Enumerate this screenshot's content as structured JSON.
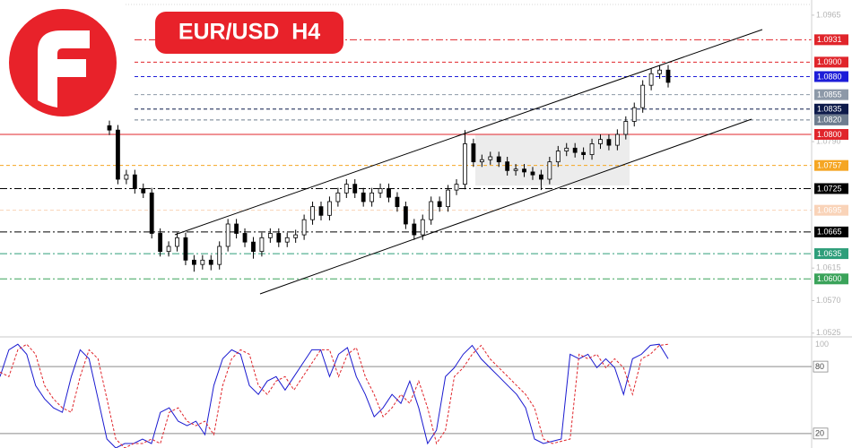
{
  "chart_data": {
    "type": "candlestick",
    "title": "EUR/USD  H4",
    "ylim": [
      1.0521,
      1.0986
    ],
    "yticks": [
      1.0965,
      {
        "value": 1.079,
        "label": "1.0790"
      },
      1.0615,
      {
        "value": 1.057,
        "label": "1.0570"
      },
      1.0525
    ],
    "up_color": "#ffffff",
    "down_color": "#000000",
    "levels": [
      {
        "value": 1.0931,
        "color": "#e0252b",
        "line": "dashdot"
      },
      {
        "value": 1.09,
        "label": "1.0900",
        "color": "#e0252b",
        "line": "dash"
      },
      {
        "value": 1.088,
        "label": "1.0880",
        "color": "#1d1dd8",
        "line": "dash"
      },
      {
        "value": 1.0855,
        "color": "#8d99a8",
        "line": "dash"
      },
      {
        "value": 1.0835,
        "color": "#0d1a4a",
        "line": "dash"
      },
      {
        "value": 1.082,
        "label": "1.0820",
        "color": "#6f7d8f",
        "line": "dash"
      },
      {
        "value": 1.08,
        "label": "1.0800",
        "color": "#e0252b",
        "line": "solid"
      },
      {
        "value": 1.0757,
        "color": "#f5a623",
        "line": "dash"
      },
      {
        "value": 1.0725,
        "color": "#000000",
        "line": "dashdot"
      },
      {
        "value": 1.0695,
        "color": "#f9d3b8",
        "line": "dash"
      },
      {
        "value": 1.0665,
        "color": "#000000",
        "line": "dashdot"
      },
      {
        "value": 1.0635,
        "color": "#2e9e7a",
        "line": "dashdot"
      },
      {
        "value": 1.06,
        "label": "1.0600",
        "color": "#3aa35a",
        "line": "dashdot"
      }
    ],
    "open": [
      1.0812,
      1.0806,
      1.0738,
      1.0744,
      1.0725,
      1.0719,
      1.0663,
      1.0638,
      1.0645,
      1.0657,
      1.0626,
      1.062,
      1.0626,
      1.062,
      1.0645,
      1.0676,
      1.0663,
      1.0651,
      1.0638,
      1.0657,
      1.0663,
      1.0651,
      1.0657,
      1.0661,
      1.0682,
      1.07,
      1.0688,
      1.0707,
      1.0719,
      1.0731,
      1.0719,
      1.0707,
      1.0719,
      1.0725,
      1.0713,
      1.07,
      1.0676,
      1.0661,
      1.0682,
      1.0707,
      1.07,
      1.0723,
      1.0731,
      1.0787,
      1.0762,
      1.0765,
      1.0769,
      1.0762,
      1.075,
      1.0752,
      1.0748,
      1.0744,
      1.0738,
      1.0762,
      1.0777,
      1.0781,
      1.0775,
      1.0772,
      1.0787,
      1.0793,
      1.0785,
      1.08,
      1.0818,
      1.0837,
      1.0868,
      1.0884,
      1.0889
    ],
    "high": [
      1.0819,
      1.0813,
      1.0751,
      1.0751,
      1.0732,
      1.0726,
      1.067,
      1.0652,
      1.0664,
      1.0664,
      1.0633,
      1.0633,
      1.0633,
      1.0652,
      1.0683,
      1.0683,
      1.067,
      1.0658,
      1.0664,
      1.067,
      1.067,
      1.0664,
      1.0668,
      1.0689,
      1.0707,
      1.0707,
      1.0714,
      1.0726,
      1.0738,
      1.0738,
      1.0726,
      1.0726,
      1.0732,
      1.0732,
      1.072,
      1.0707,
      1.0683,
      1.0689,
      1.0714,
      1.0714,
      1.073,
      1.0738,
      1.0806,
      1.0794,
      1.0772,
      1.0776,
      1.0776,
      1.0769,
      1.0759,
      1.0759,
      1.0755,
      1.0751,
      1.0769,
      1.0784,
      1.0788,
      1.0788,
      1.0782,
      1.0794,
      1.08,
      1.08,
      1.0807,
      1.0825,
      1.0844,
      1.0875,
      1.0891,
      1.0896,
      1.0896
    ],
    "low": [
      1.0799,
      1.0731,
      1.0731,
      1.0718,
      1.0712,
      1.0656,
      1.0631,
      1.0631,
      1.0638,
      1.0619,
      1.061,
      1.0613,
      1.0612,
      1.0613,
      1.0638,
      1.0656,
      1.0644,
      1.0628,
      1.0631,
      1.065,
      1.0644,
      1.0644,
      1.065,
      1.0654,
      1.0675,
      1.0681,
      1.0681,
      1.07,
      1.0712,
      1.0712,
      1.07,
      1.07,
      1.0712,
      1.0706,
      1.0693,
      1.0669,
      1.0654,
      1.0654,
      1.0675,
      1.0693,
      1.0693,
      1.0716,
      1.0724,
      1.0755,
      1.0755,
      1.0758,
      1.0755,
      1.0743,
      1.0743,
      1.0741,
      1.0737,
      1.0723,
      1.0731,
      1.0755,
      1.077,
      1.0768,
      1.0765,
      1.0765,
      1.078,
      1.0778,
      1.0778,
      1.0793,
      1.0811,
      1.083,
      1.0861,
      1.0877,
      1.0865
    ],
    "close": [
      1.0806,
      1.0738,
      1.0744,
      1.0725,
      1.0719,
      1.0663,
      1.0638,
      1.0645,
      1.0657,
      1.0626,
      1.062,
      1.0626,
      1.062,
      1.0645,
      1.0676,
      1.0663,
      1.0651,
      1.0638,
      1.0657,
      1.0663,
      1.0651,
      1.0657,
      1.0661,
      1.0682,
      1.07,
      1.0688,
      1.0707,
      1.0719,
      1.0731,
      1.0719,
      1.0707,
      1.0719,
      1.0725,
      1.0713,
      1.07,
      1.0676,
      1.0661,
      1.0682,
      1.0707,
      1.07,
      1.0723,
      1.0731,
      1.0787,
      1.0762,
      1.0765,
      1.0769,
      1.0762,
      1.075,
      1.0752,
      1.0748,
      1.0744,
      1.0738,
      1.0762,
      1.0777,
      1.0781,
      1.0775,
      1.0772,
      1.0787,
      1.0793,
      1.0785,
      1.08,
      1.0818,
      1.0837,
      1.0868,
      1.0884,
      1.0889,
      1.0872
    ],
    "stochastic": {
      "ylim": [
        7,
        105
      ],
      "yticks": [
        100,
        80,
        20
      ],
      "grid": [
        80,
        20
      ],
      "series": [
        {
          "color": "#1a1ad0",
          "values": [
            71,
            95,
            100,
            91,
            63,
            51,
            43,
            39,
            71,
            95,
            87,
            51,
            15,
            7,
            11,
            11,
            15,
            11,
            39,
            43,
            31,
            27,
            31,
            19,
            63,
            87,
            95,
            91,
            63,
            55,
            67,
            71,
            59,
            71,
            83,
            95,
            95,
            71,
            91,
            97,
            71,
            55,
            35,
            43,
            55,
            47,
            67,
            43,
            11,
            23,
            71,
            79,
            91,
            99,
            87,
            79,
            71,
            63,
            55,
            43,
            15,
            11,
            13,
            15,
            91,
            87,
            91,
            79,
            87,
            79,
            55,
            87,
            91,
            99,
            100,
            87
          ]
        },
        {
          "color": "#e0252b",
          "values": [
            75,
            71,
            95,
            100,
            91,
            63,
            51,
            43,
            39,
            71,
            95,
            87,
            51,
            15,
            7,
            11,
            11,
            15,
            11,
            39,
            43,
            31,
            27,
            31,
            19,
            63,
            87,
            95,
            91,
            63,
            55,
            67,
            71,
            59,
            71,
            83,
            95,
            95,
            71,
            91,
            97,
            71,
            55,
            35,
            43,
            55,
            47,
            67,
            43,
            11,
            23,
            71,
            79,
            91,
            99,
            87,
            79,
            71,
            63,
            55,
            43,
            15,
            11,
            13,
            15,
            91,
            87,
            91,
            79,
            87,
            79,
            55,
            87,
            91,
            99,
            100
          ]
        }
      ]
    }
  }
}
